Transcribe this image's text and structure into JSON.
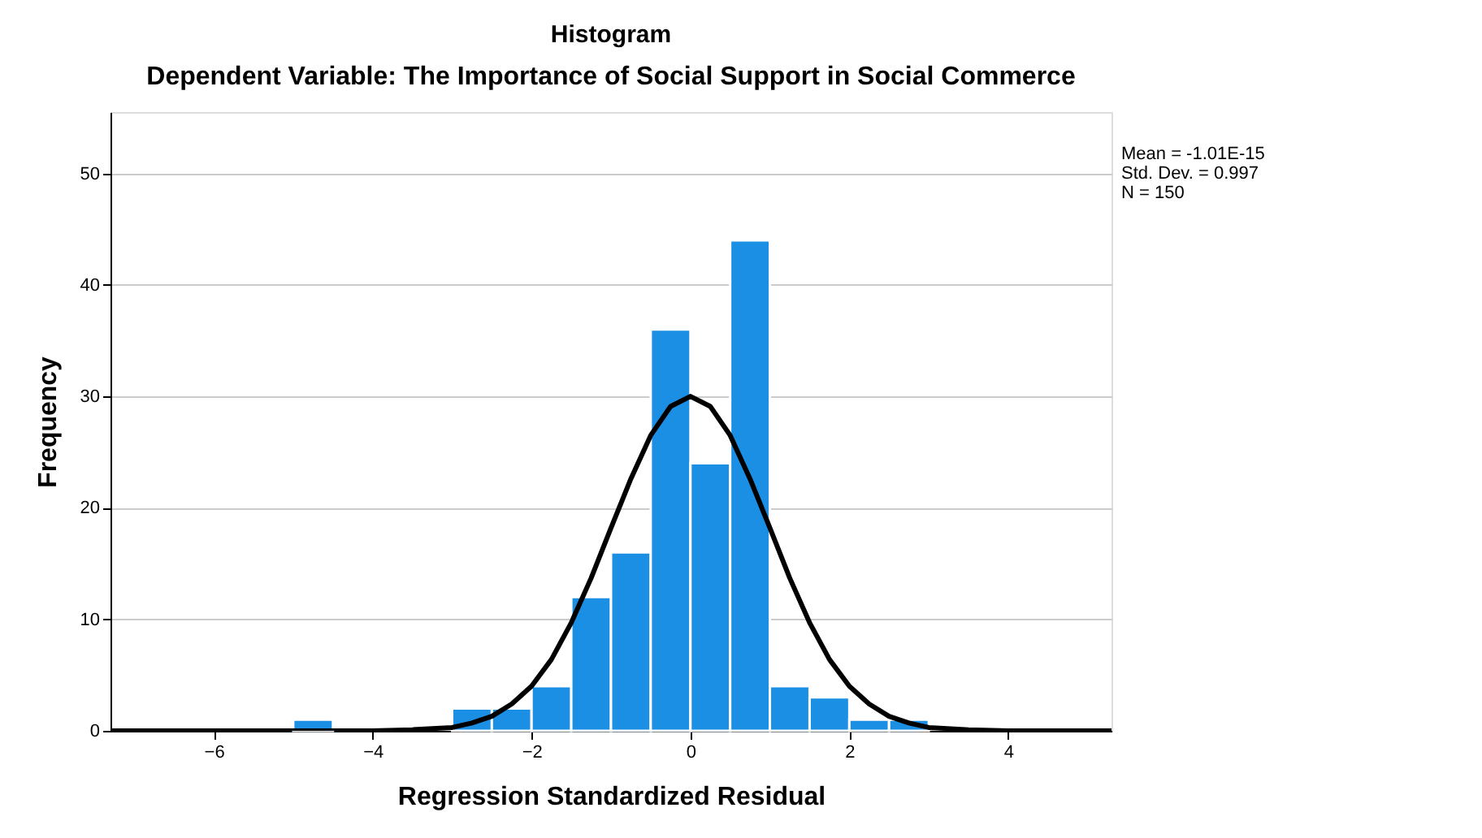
{
  "chart_data": {
    "type": "histogram",
    "title": "Histogram",
    "subtitle": "Dependent Variable: The Importance of Social Support in Social Commerce",
    "xlabel": "Regression Standardized Residual",
    "ylabel": "Frequency",
    "bins": [
      -5,
      -4.5,
      -4,
      -3.5,
      -3,
      -2.5,
      -2,
      -1.5,
      -1,
      -0.5,
      0,
      0.5,
      1,
      1.5,
      2,
      2.5,
      3
    ],
    "values": [
      1,
      0,
      0,
      0,
      2,
      2,
      4,
      12,
      16,
      36,
      24,
      44,
      4,
      3,
      1,
      1
    ],
    "color": "#1a8fe3",
    "series": [
      {
        "type": "line",
        "color": "#000000",
        "x": [
          -7.3,
          -4,
          -3.5,
          -3,
          -2.75,
          -2.5,
          -2.25,
          -2,
          -1.75,
          -1.5,
          -1.25,
          -1,
          -0.75,
          -0.5,
          -0.25,
          0,
          0.25,
          0.5,
          0.75,
          1,
          1.25,
          1.5,
          1.75,
          2,
          2.25,
          2.5,
          2.75,
          3,
          3.5,
          4,
          5.3
        ],
        "values": [
          0,
          0,
          0.1,
          0.3,
          0.7,
          1.3,
          2.4,
          4.0,
          6.4,
          9.7,
          13.7,
          18.2,
          22.6,
          26.5,
          29.1,
          30,
          29.1,
          26.5,
          22.6,
          18.2,
          13.7,
          9.7,
          6.4,
          4.0,
          2.4,
          1.3,
          0.7,
          0.3,
          0.1,
          0,
          0
        ]
      }
    ],
    "xlim": [
      -7.3,
      5.3
    ],
    "xticks": [
      -6,
      -4,
      -2,
      0,
      2,
      4
    ],
    "ylim": [
      0,
      55.5
    ],
    "yticks": [
      0,
      10,
      20,
      30,
      40,
      50
    ],
    "grid": "y",
    "annotations": [
      "Mean = -1.01E-15",
      "Std. Dev. = 0.997",
      "N = 150"
    ]
  }
}
